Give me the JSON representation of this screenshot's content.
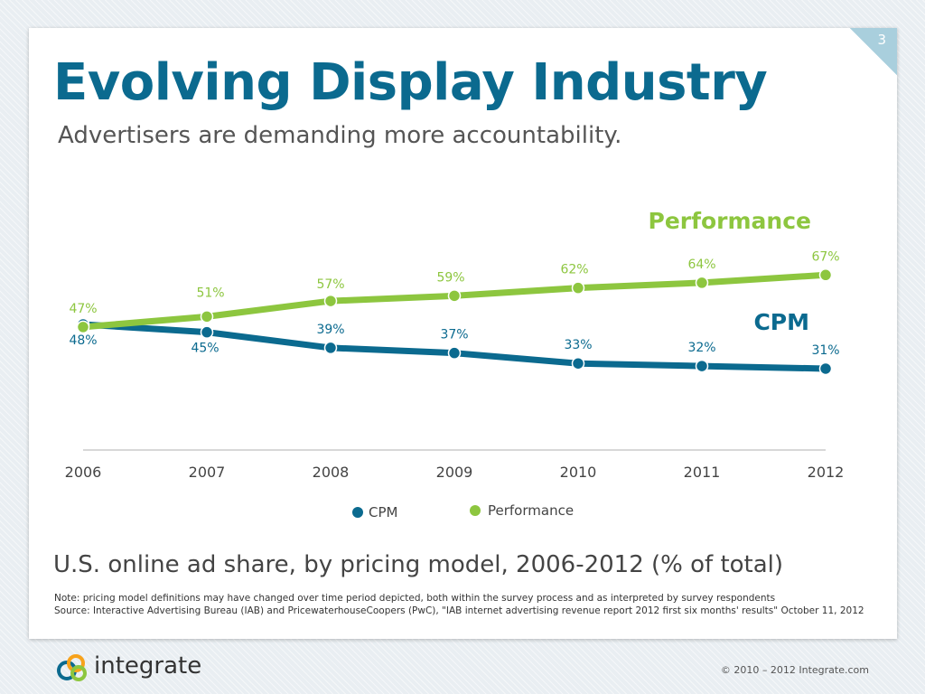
{
  "slide": {
    "page_number": "3",
    "title": "Evolving Display Industry",
    "subtitle": "Advertisers are demanding more accountability.",
    "caption": "U.S. online ad share, by pricing model, 2006-2012 (% of total)",
    "note": "Note: pricing model definitions may have changed over time period depicted, both within the survey process and as interpreted by survey respondents",
    "source": "Source: Interactive Advertising Bureau (IAB) and PricewaterhouseCoopers (PwC), \"IAB internet advertising revenue report 2012 first six months' results\" October 11, 2012"
  },
  "footer": {
    "logo_text": "integrate",
    "copyright": "© 2010 – 2012 Integrate.com"
  },
  "chart_data": {
    "type": "line",
    "x": [
      "2006",
      "2007",
      "2008",
      "2009",
      "2010",
      "2011",
      "2012"
    ],
    "series": [
      {
        "name": "CPM",
        "values": [
          48,
          45,
          39,
          37,
          33,
          32,
          31
        ],
        "labels": [
          "48%",
          "45%",
          "39%",
          "37%",
          "33%",
          "32%",
          "31%"
        ],
        "color": "#0b6a8f",
        "inline_label": "CPM"
      },
      {
        "name": "Performance",
        "values": [
          47,
          51,
          57,
          59,
          62,
          64,
          67
        ],
        "labels": [
          "47%",
          "51%",
          "57%",
          "59%",
          "62%",
          "64%",
          "67%"
        ],
        "color": "#8dc63f",
        "inline_label": "Performance"
      }
    ],
    "ylim": [
      0,
      70
    ],
    "grid": false,
    "legend": "bottom-center",
    "axis_color": "#cccccc",
    "xtick_color": "#444444"
  }
}
